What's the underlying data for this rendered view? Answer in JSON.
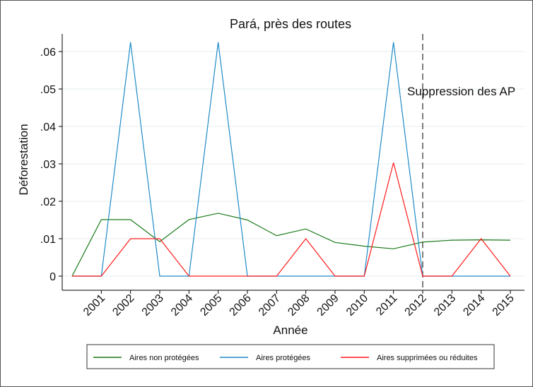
{
  "chart_data": {
    "type": "line",
    "title": "Pará, près des routes",
    "xlabel": "Année",
    "ylabel": "Déforestation",
    "x": [
      2000,
      2001,
      2002,
      2003,
      2004,
      2005,
      2006,
      2007,
      2008,
      2009,
      2010,
      2011,
      2012,
      2013,
      2014,
      2015
    ],
    "xticks": [
      "2001",
      "2002",
      "2003",
      "2004",
      "2005",
      "2006",
      "2007",
      "2008",
      "2009",
      "2010",
      "2011",
      "2012",
      "2013",
      "2014",
      "2015"
    ],
    "yticks": [
      "0",
      ".01",
      ".02",
      ".03",
      ".04",
      ".05",
      ".06"
    ],
    "ylim": [
      0,
      0.0625
    ],
    "grid": true,
    "series": [
      {
        "name": "Aires non protégées",
        "color": "#1a7a1a",
        "values": [
          0,
          0.0151,
          0.0151,
          0.0092,
          0.0151,
          0.0168,
          0.015,
          0.0108,
          0.0126,
          0.009,
          0.008,
          0.0073,
          0.0091,
          0.0096,
          0.0097,
          0.0096
        ]
      },
      {
        "name": "Aires protégées",
        "color": "#1f8bc8",
        "values": [
          0,
          0,
          0.0625,
          0,
          0,
          0.0625,
          0,
          0,
          0,
          0,
          0,
          0.0625,
          0,
          0,
          0,
          0
        ]
      },
      {
        "name": "Aires supprimées ou réduites",
        "color": "#ff1a1a",
        "values": [
          0,
          0,
          0.01,
          0.01,
          0,
          0,
          0,
          0,
          0.01,
          0,
          0,
          0.0303,
          0,
          0,
          0.01,
          0
        ]
      }
    ],
    "annotation": {
      "x": 2012,
      "label": "Suppression des AP"
    },
    "legend": "bottom"
  }
}
